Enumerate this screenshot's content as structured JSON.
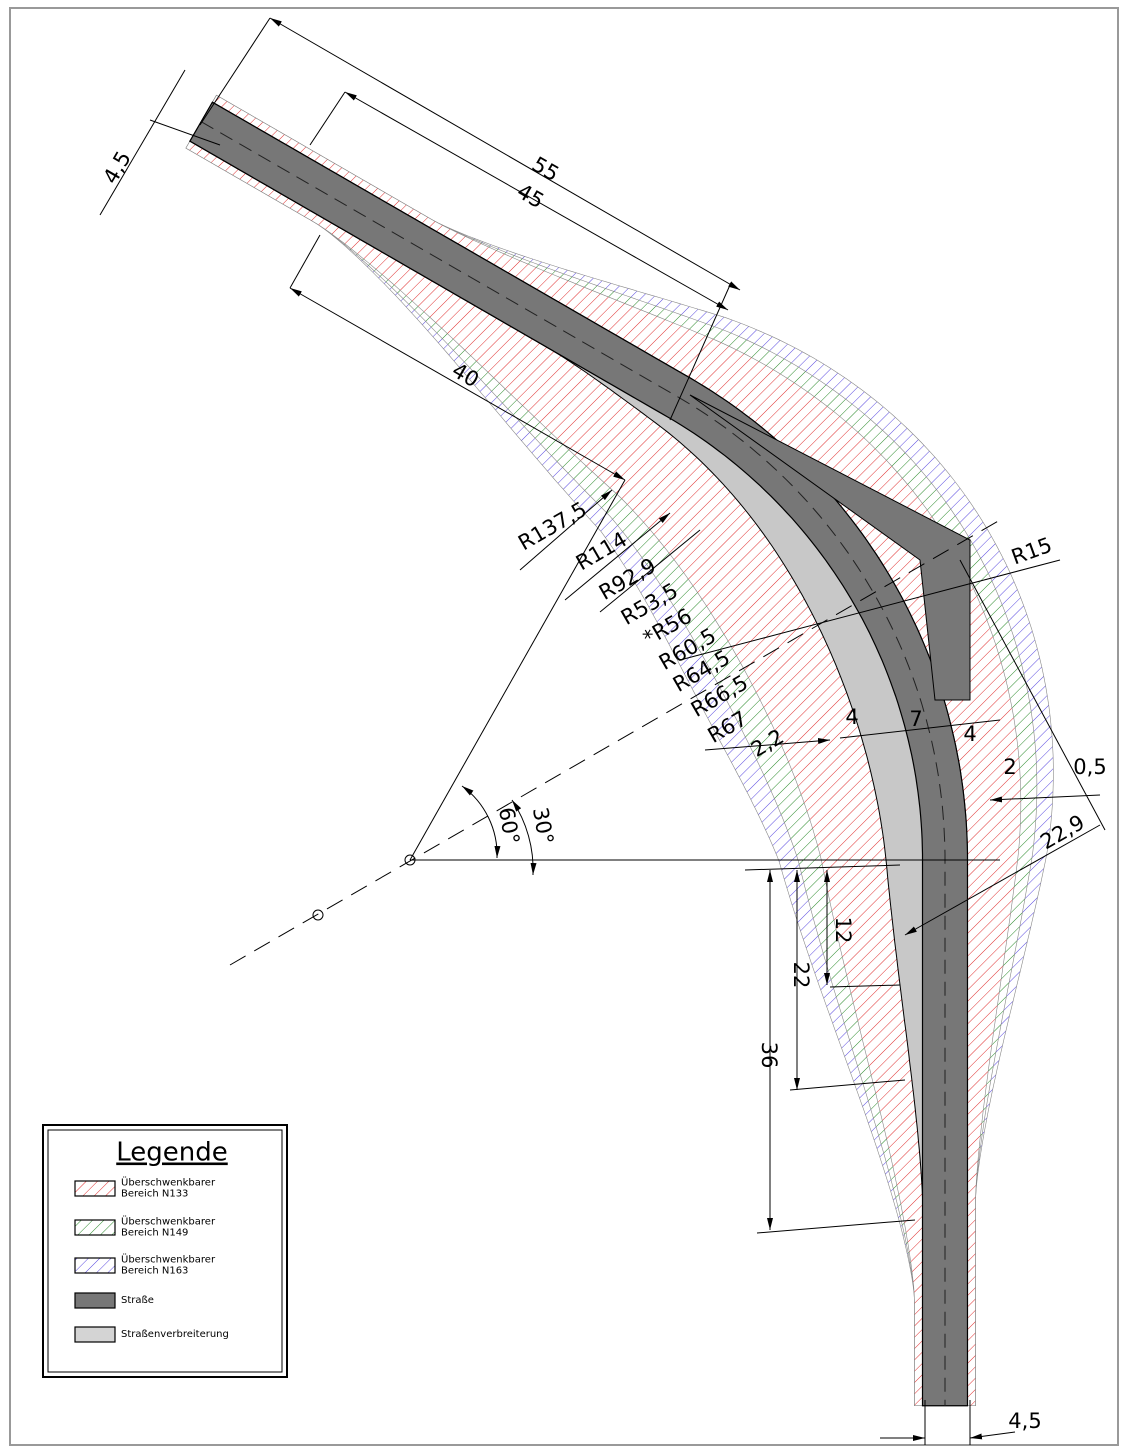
{
  "labels": [
    "4,5",
    "55",
    "45",
    "40",
    "R137,5",
    "R114",
    "R92,9",
    "R53,5",
    "*R56",
    "R60,5",
    "R64,5",
    "R66,5",
    "R67",
    "2,2",
    "4",
    "7",
    "4",
    "2",
    "0,5",
    "22,9",
    "R15",
    "60°",
    "30°",
    "12",
    "22",
    "36",
    "4,5"
  ],
  "legend": {
    "title": "Legende",
    "items": [
      {
        "lines": [
          "Überschwenkbarer",
          "Bereich N133"
        ]
      },
      {
        "lines": [
          "Überschwenkbarer",
          "Bereich N149"
        ]
      },
      {
        "lines": [
          "Überschwenkbarer",
          "Bereich N163"
        ]
      },
      {
        "lines": [
          "Straße"
        ]
      },
      {
        "lines": [
          "Straßenverbreiterung"
        ]
      }
    ]
  }
}
